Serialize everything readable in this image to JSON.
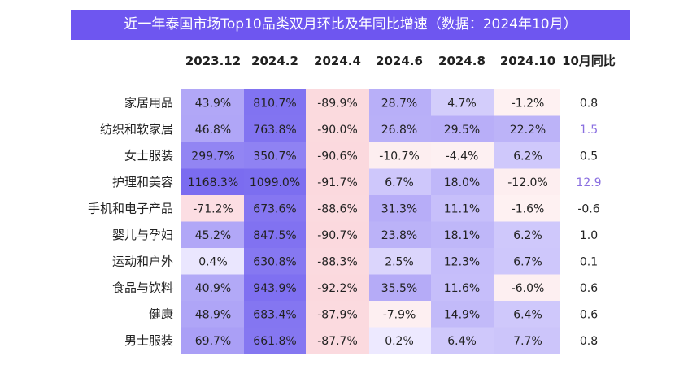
{
  "title": "近一年泰国市场Top10品类双月环比及年同比增速（数据：2024年10月）",
  "chart_data": {
    "type": "heatmap",
    "title": "近一年泰国市场Top10品类双月环比及年同比增速（数据：2024年10月）",
    "columns": [
      "2023.12",
      "2024.2",
      "2024.4",
      "2024.6",
      "2024.8",
      "2024.10",
      "10月同比"
    ],
    "rows": [
      {
        "category": "家居用品",
        "values": [
          43.9,
          810.7,
          -89.9,
          28.7,
          4.7,
          -1.2
        ],
        "yoy": 0.8
      },
      {
        "category": "纺织和软家居",
        "values": [
          46.8,
          763.8,
          -90.0,
          26.8,
          29.5,
          22.2
        ],
        "yoy": 1.5
      },
      {
        "category": "女士服装",
        "values": [
          299.7,
          350.7,
          -90.6,
          -10.7,
          -4.4,
          6.2
        ],
        "yoy": 0.5
      },
      {
        "category": "护理和美容",
        "values": [
          1168.3,
          1099.0,
          -91.7,
          6.7,
          18.0,
          -12.0
        ],
        "yoy": 12.9
      },
      {
        "category": "手机和电子产品",
        "values": [
          -71.2,
          673.6,
          -88.6,
          31.3,
          11.1,
          -1.6
        ],
        "yoy": -0.6
      },
      {
        "category": "婴儿与孕妇",
        "values": [
          45.2,
          847.5,
          -90.7,
          23.8,
          18.1,
          6.2
        ],
        "yoy": 1.0
      },
      {
        "category": "运动和户外",
        "values": [
          0.4,
          630.8,
          -88.3,
          2.5,
          12.3,
          6.7
        ],
        "yoy": 0.1
      },
      {
        "category": "食品与饮料",
        "values": [
          40.9,
          943.9,
          -92.2,
          35.5,
          11.6,
          -6.0
        ],
        "yoy": 0.6
      },
      {
        "category": "健康",
        "values": [
          48.9,
          683.4,
          -87.9,
          -7.9,
          14.9,
          6.4
        ],
        "yoy": 0.6
      },
      {
        "category": "男士服装",
        "values": [
          69.7,
          661.8,
          -87.7,
          0.2,
          6.4,
          7.7
        ],
        "yoy": 0.8
      }
    ],
    "value_format": {
      "pct_decimals": 1,
      "pct_suffix": "%",
      "yoy_decimals": 1
    },
    "colors": {
      "title_bg": "#6e56f0",
      "title_text": "#ffffff",
      "text": "#222222",
      "high": "#7b6cf0",
      "low": "#fbd7dc",
      "yoy_highlight": "#8a6fe0"
    },
    "highlighted_yoy_rows": [
      "纺织和软家居",
      "护理和美容"
    ]
  }
}
